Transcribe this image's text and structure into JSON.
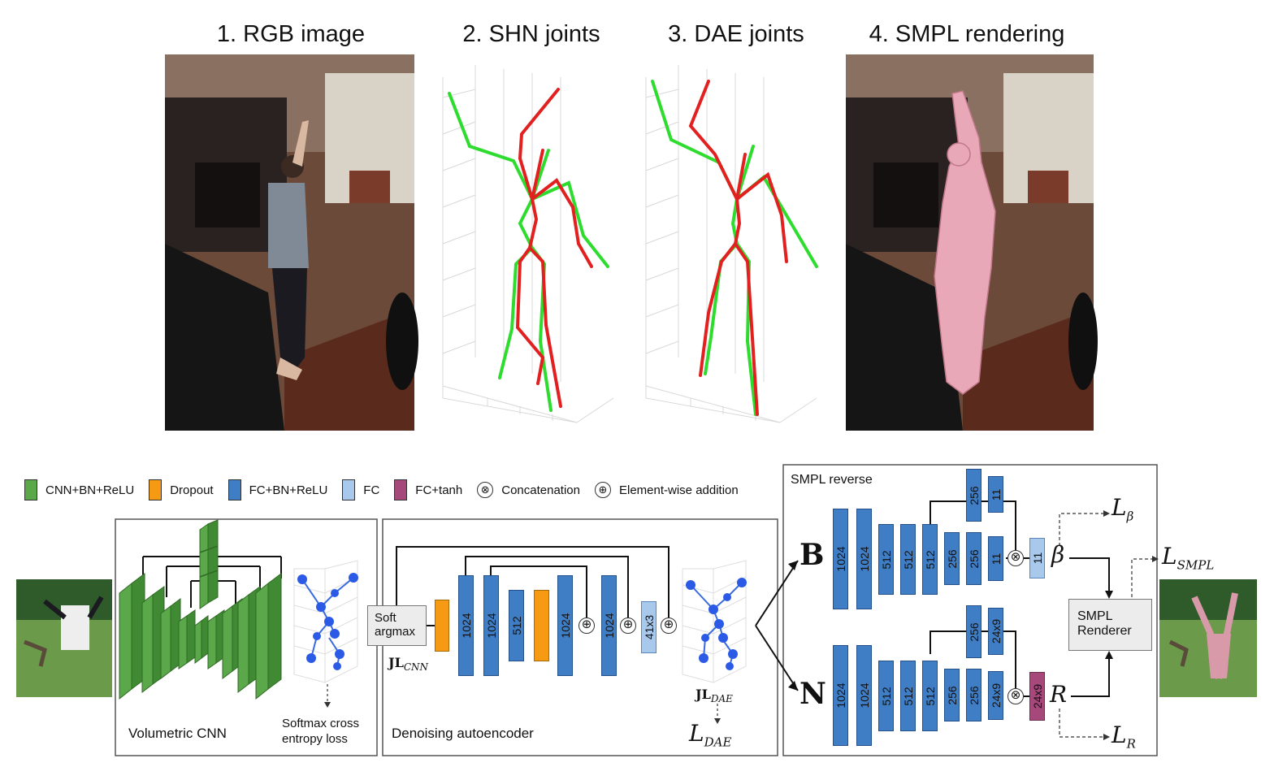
{
  "titles": {
    "rgb": "1. RGB image",
    "shn": "2. SHN joints",
    "dae": "3. DAE joints",
    "smpl": "4. SMPL rendering"
  },
  "legend": [
    {
      "label": "CNN+BN+ReLU",
      "color": "#5aa84a"
    },
    {
      "label": "Dropout",
      "color": "#f59a12"
    },
    {
      "label": "FC+BN+ReLU",
      "color": "#3f7dc4"
    },
    {
      "label": "FC",
      "color": "#a8c8ec"
    },
    {
      "label": "FC+tanh",
      "color": "#a6487a"
    }
  ],
  "legend_ops": {
    "concat_label": "Concatenation",
    "concat_symbol": "⊗",
    "add_label": "Element-wise addition",
    "add_symbol": "⊕"
  },
  "vcnn": {
    "caption": "Volumetric CNN",
    "loss_line1": "Softmax cross",
    "loss_line2": "entropy loss"
  },
  "dae": {
    "caption": "Denoising autoencoder",
    "soft_line1": "Soft",
    "soft_line2": "argmax",
    "jl_cnn": "JL",
    "jl_cnn_sub": "CNN",
    "jl_dae": "JL",
    "jl_dae_sub": "DAE",
    "loss": "L",
    "loss_sub": "DAE",
    "blocks": [
      "1024",
      "1024",
      "512",
      "1024",
      "1024",
      "41x3"
    ]
  },
  "smpl_reverse": {
    "title": "SMPL reverse",
    "B": "B",
    "N": "N",
    "top_blocks": [
      "1024",
      "1024",
      "512",
      "512",
      "512",
      "256",
      "256",
      "11",
      "256",
      "11",
      "11"
    ],
    "bottom_blocks": [
      "1024",
      "1024",
      "512",
      "512",
      "512",
      "256",
      "256",
      "24x9",
      "256",
      "24x9",
      "24x9"
    ],
    "beta": "β",
    "R": "R",
    "L_beta": "L",
    "L_beta_sub": "β",
    "L_R": "L",
    "L_R_sub": "R",
    "L_smpl": "L",
    "L_smpl_sub": "SMPL",
    "renderer_line1": "SMPL",
    "renderer_line2": "Renderer"
  }
}
